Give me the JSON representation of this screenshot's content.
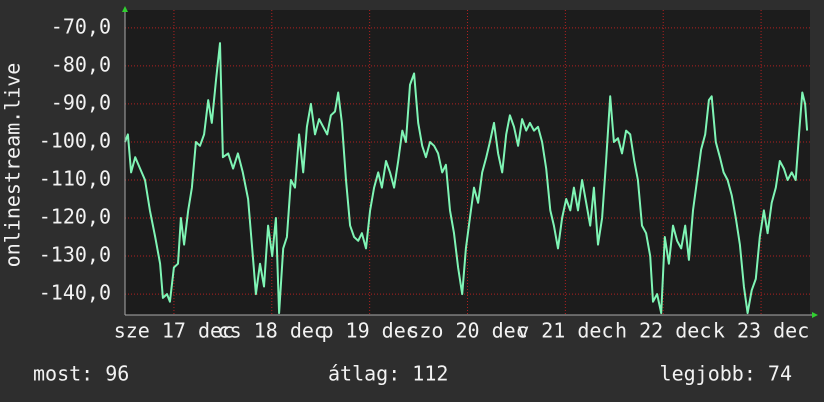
{
  "chart_data": {
    "type": "line",
    "y_label": "onlinestream.live",
    "x": [
      0,
      0.7,
      1.5,
      2.5,
      3.7,
      4.9,
      6.1,
      7.4,
      8.6,
      9.3,
      10.3,
      11.0,
      12.0,
      13.0,
      13.7,
      14.5,
      15.5,
      16.4,
      17.4,
      18.4,
      19.4,
      20.4,
      21.3,
      22.3,
      23.3,
      24.0,
      25.3,
      26.5,
      27.7,
      28.9,
      30.2,
      31.2,
      32.1,
      33.1,
      34.1,
      35.1,
      36.1,
      37.0,
      37.8,
      38.8,
      39.7,
      40.7,
      41.7,
      42.7,
      43.7,
      44.6,
      45.6,
      46.6,
      47.6,
      48.6,
      49.6,
      50.5,
      51.5,
      52.3,
      53.2,
      54.2,
      55.2,
      56.2,
      57.2,
      58.1,
      59.1,
      60.1,
      61.1,
      62.1,
      63.0,
      64.0,
      65.0,
      66.0,
      67.0,
      68.0,
      68.9,
      69.9,
      70.9,
      71.9,
      72.9,
      73.8,
      74.8,
      75.8,
      76.8,
      77.8,
      78.7,
      79.7,
      80.7,
      81.7,
      82.7,
      83.6,
      84.6,
      85.6,
      86.6,
      87.6,
      88.6,
      89.5,
      90.5,
      91.5,
      92.5,
      93.5,
      94.4,
      95.4,
      96.4,
      97.4,
      98.4,
      99.3,
      100.3,
      101.3,
      102.3,
      103.3,
      104.3,
      105.2,
      106.2,
      107.2,
      108.2,
      109.2,
      110.1,
      111.1,
      112.1,
      113.1,
      114.1,
      115.0,
      116.0,
      117.0,
      118.0,
      119.0,
      119.9,
      120.9,
      121.9,
      122.9,
      123.9,
      124.9,
      125.8,
      126.8,
      127.8,
      128.8,
      129.5,
      130.5,
      131.5,
      132.4,
      133.4,
      134.4,
      135.4,
      136.4,
      137.4,
      138.3,
      139.3,
      140.3,
      141.3,
      142.3,
      143.2,
      143.9,
      144.9,
      145.9,
      146.8,
      147.8,
      148.8,
      149.8,
      150.8,
      151.8,
      152.7,
      153.7,
      154.7,
      155.7,
      156.7,
      157.6,
      158.6,
      159.6,
      160.6,
      161.6,
      162.5,
      163.5,
      164.5,
      165.3,
      166.1,
      166.8,
      167.3
    ],
    "series": [
      {
        "color": "#7ff5b5",
        "values": [
          -100,
          -98,
          -108,
          -104,
          -107,
          -110,
          -118,
          -125,
          -132,
          -141,
          -140,
          -142,
          -133,
          -132,
          -120,
          -127,
          -118,
          -112,
          -100,
          -101,
          -98,
          -89,
          -95,
          -84,
          -74,
          -104,
          -103,
          -107,
          -103,
          -108,
          -115,
          -128,
          -140,
          -132,
          -138,
          -122,
          -130,
          -120,
          -145,
          -128,
          -125,
          -110,
          -112,
          -98,
          -108,
          -96,
          -90,
          -98,
          -94,
          -96,
          -98,
          -93,
          -92,
          -87,
          -95,
          -110,
          -122,
          -125,
          -126,
          -124,
          -128,
          -118,
          -112,
          -108,
          -112,
          -105,
          -108,
          -112,
          -105,
          -97,
          -100,
          -85,
          -82,
          -95,
          -101,
          -104,
          -100,
          -101,
          -103,
          -108,
          -106,
          -118,
          -124,
          -133,
          -140,
          -128,
          -120,
          -112,
          -116,
          -108,
          -104,
          -100,
          -95,
          -103,
          -108,
          -98,
          -93,
          -96,
          -101,
          -94,
          -97,
          -95,
          -97,
          -96,
          -100,
          -107,
          -118,
          -122,
          -128,
          -120,
          -115,
          -118,
          -112,
          -118,
          -110,
          -116,
          -122,
          -112,
          -127,
          -120,
          -105,
          -88,
          -100,
          -99,
          -103,
          -97,
          -98,
          -105,
          -110,
          -122,
          -124,
          -130,
          -142,
          -140,
          -145,
          -125,
          -132,
          -122,
          -126,
          -128,
          -122,
          -131,
          -118,
          -110,
          -102,
          -98,
          -89,
          -88,
          -100,
          -104,
          -108,
          -110,
          -114,
          -120,
          -127,
          -138,
          -145,
          -139,
          -136,
          -125,
          -118,
          -124,
          -116,
          -112,
          -105,
          -107,
          -110,
          -108,
          -110,
          -98,
          -87,
          -90,
          -97
        ]
      }
    ],
    "xlim": [
      0,
      168
    ],
    "xticks": [
      {
        "value": 12,
        "label": "sze 17 dec"
      },
      {
        "value": 36,
        "label": "cs 18 dec"
      },
      {
        "value": 60,
        "label": "p 19 dec"
      },
      {
        "value": 84,
        "label": "szo 20 dec"
      },
      {
        "value": 108,
        "label": "v 21 dec"
      },
      {
        "value": 132,
        "label": "h 22 dec"
      },
      {
        "value": 156,
        "label": "k 23 dec"
      }
    ],
    "ylim": [
      -145.5,
      -65.3
    ],
    "yticks": [
      {
        "value": -70,
        "label": "-70,0"
      },
      {
        "value": -80,
        "label": "-80,0"
      },
      {
        "value": -90,
        "label": "-90,0"
      },
      {
        "value": -100,
        "label": "-100,0"
      },
      {
        "value": -110,
        "label": "-110,0"
      },
      {
        "value": -120,
        "label": "-120,0"
      },
      {
        "value": -130,
        "label": "-130,0"
      },
      {
        "value": -140,
        "label": "-140,0"
      }
    ],
    "grid": true
  },
  "footer": {
    "now": "most: 96",
    "average": "átlag: 112",
    "best": "legjobb: 74"
  }
}
